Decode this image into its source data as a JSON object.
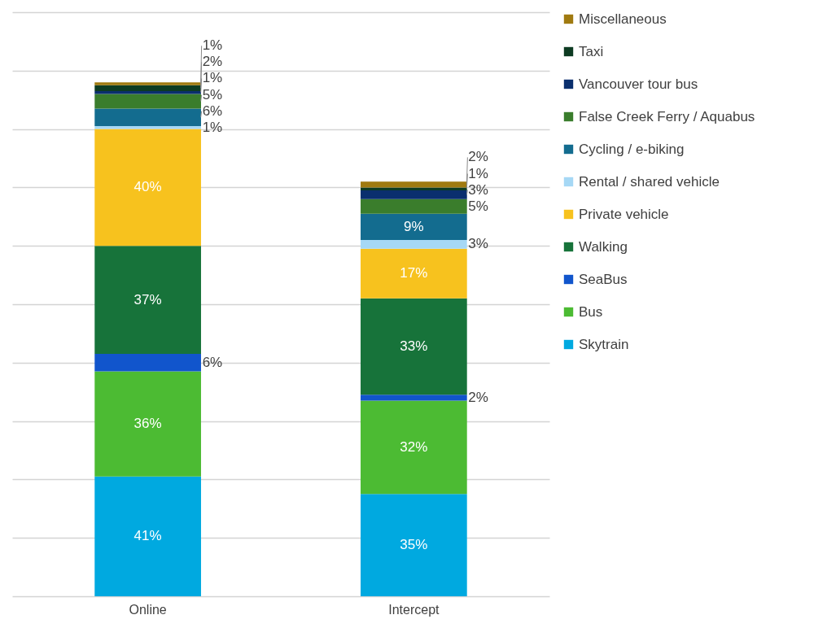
{
  "chart_data": {
    "type": "bar",
    "stacked": true,
    "categories": [
      "Online",
      "Intercept"
    ],
    "ylim": [
      0,
      200
    ],
    "yticks": [
      {
        "value": 0,
        "label": null
      },
      {
        "value": 20,
        "label": null
      },
      {
        "value": 40,
        "label": null
      },
      {
        "value": 60,
        "label": null
      },
      {
        "value": 80,
        "label": null
      },
      {
        "value": 100,
        "label": null
      },
      {
        "value": 120,
        "label": null
      },
      {
        "value": 140,
        "label": null
      },
      {
        "value": 160,
        "label": null
      },
      {
        "value": 180,
        "label": null
      },
      {
        "value": 200,
        "label": null
      }
    ],
    "tick_labels": "x",
    "grid": "y",
    "legend": "right",
    "series": [
      {
        "name": "Skytrain",
        "color": "#00a9e0",
        "values": [
          41,
          35
        ],
        "value_labels": [
          "41%",
          "35%"
        ]
      },
      {
        "name": "Bus",
        "color": "#4cbb33",
        "values": [
          36,
          32
        ],
        "value_labels": [
          "36%",
          "32%"
        ]
      },
      {
        "name": "SeaBus",
        "color": "#1155cc",
        "values": [
          6,
          2
        ],
        "value_labels": [
          "6%",
          "2%"
        ]
      },
      {
        "name": "Walking",
        "color": "#17733a",
        "values": [
          37,
          33
        ],
        "value_labels": [
          "37%",
          "33%"
        ]
      },
      {
        "name": "Private vehicle",
        "color": "#f7c21e",
        "values": [
          40,
          17
        ],
        "value_labels": [
          "40%",
          "17%"
        ]
      },
      {
        "name": "Rental / shared vehicle",
        "color": "#a6d8f5",
        "values": [
          1,
          3
        ],
        "value_labels": [
          "1%",
          "3%"
        ]
      },
      {
        "name": "Cycling / e-biking",
        "color": "#136c8f",
        "values": [
          6,
          9
        ],
        "value_labels": [
          "6%",
          "9%"
        ]
      },
      {
        "name": "False Creek Ferry / Aquabus",
        "color": "#3a7d2c",
        "values": [
          5,
          5
        ],
        "value_labels": [
          "5%",
          "5%"
        ]
      },
      {
        "name": "Vancouver tour bus",
        "color": "#0a2f6e",
        "values": [
          1,
          3
        ],
        "value_labels": [
          "1%",
          "3%"
        ]
      },
      {
        "name": "Taxi",
        "color": "#0d3b22",
        "values": [
          2,
          1
        ],
        "value_labels": [
          "2%",
          "1%"
        ]
      },
      {
        "name": "Miscellaneous",
        "color": "#a07a10",
        "values": [
          1,
          2
        ],
        "value_labels": [
          "1%",
          "2%"
        ]
      }
    ]
  }
}
